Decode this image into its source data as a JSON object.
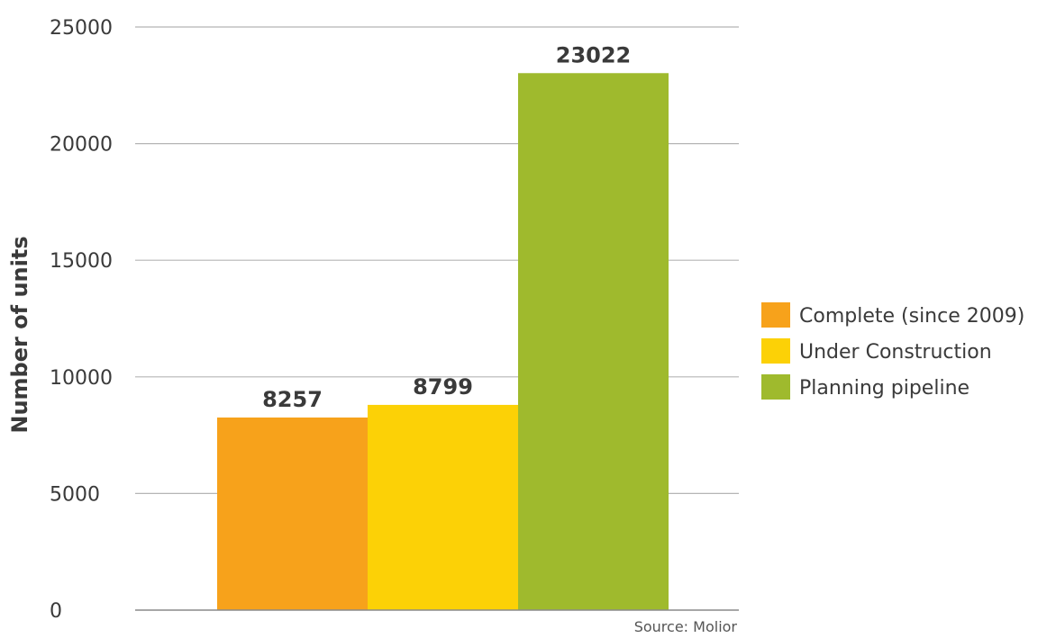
{
  "chart_data": {
    "type": "bar",
    "categories": [
      "Complete (since 2009)",
      "Under Construction",
      "Planning pipeline"
    ],
    "values": [
      8257,
      8799,
      23022
    ],
    "colors": [
      "#f7a21b",
      "#fcd106",
      "#9fba2d"
    ],
    "ylabel": "Number of units",
    "xlabel": "",
    "ylim": [
      0,
      25000
    ],
    "yticks": [
      0,
      5000,
      10000,
      15000,
      20000,
      25000
    ],
    "grid": true,
    "legend": {
      "placement": "right",
      "entries": [
        "Complete (since 2009)",
        "Under Construction",
        "Planning pipeline"
      ]
    },
    "data_labels": [
      "8257",
      "8799",
      "23022"
    ]
  },
  "source": "Source: Molior"
}
